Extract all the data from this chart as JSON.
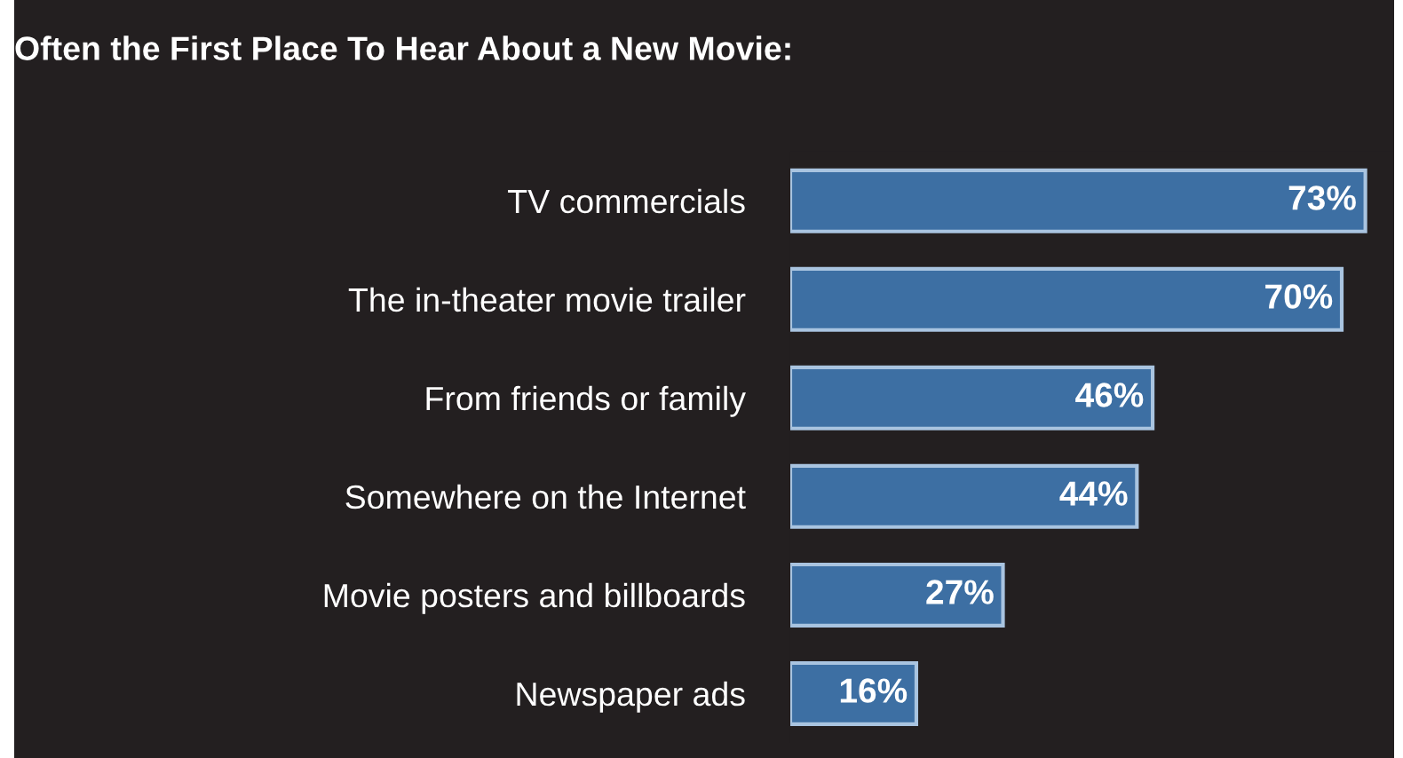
{
  "chart_data": {
    "type": "bar",
    "orientation": "horizontal",
    "title": "Often the First Place To Hear About a New Movie:",
    "categories": [
      "TV commercials",
      "The in-theater movie trailer",
      "From friends or family",
      "Somewhere on the Internet",
      "Movie posters and billboards",
      "Newspaper ads"
    ],
    "values": [
      73,
      70,
      46,
      44,
      27,
      16
    ],
    "value_labels": [
      "73%",
      "70%",
      "46%",
      "44%",
      "27%",
      "16%"
    ],
    "color": "#3d6fa3",
    "grid": false,
    "legend": false
  }
}
